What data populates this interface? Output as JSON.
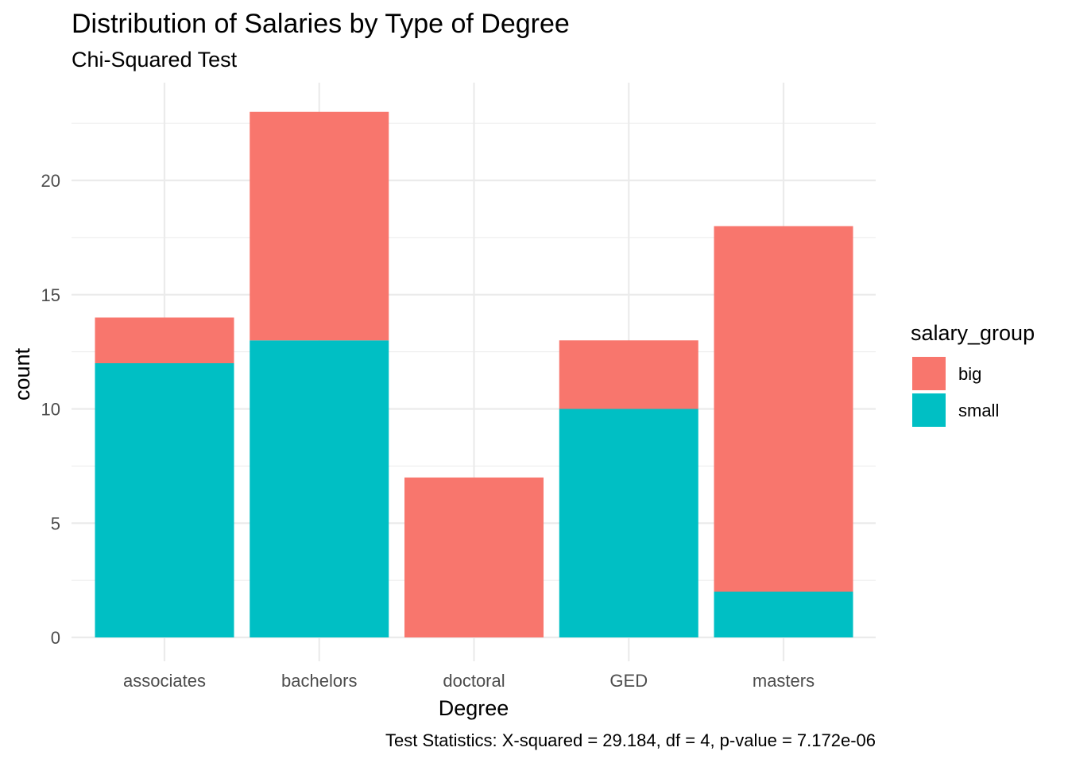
{
  "chart_data": {
    "type": "bar",
    "stacked": true,
    "title": "Distribution of Salaries by Type of Degree",
    "subtitle": "Chi-Squared Test",
    "xlabel": "Degree",
    "ylabel": "count",
    "caption": "Test Statistics: X-squared = 29.184, df = 4, p-value = 7.172e-06",
    "categories": [
      "associates",
      "bachelors",
      "doctoral",
      "GED",
      "masters"
    ],
    "series": [
      {
        "name": "small",
        "values": [
          12,
          13,
          0,
          10,
          2
        ],
        "color": "#00BFC4"
      },
      {
        "name": "big",
        "values": [
          2,
          10,
          7,
          3,
          16
        ],
        "color": "#F8766D"
      }
    ],
    "ylim": [
      0,
      23
    ],
    "yticks": [
      0,
      5,
      10,
      15,
      20
    ],
    "grid": true,
    "legend": {
      "title": "salary_group",
      "position": "right",
      "entries": [
        {
          "label": "big",
          "color": "#F8766D"
        },
        {
          "label": "small",
          "color": "#00BFC4"
        }
      ]
    }
  }
}
